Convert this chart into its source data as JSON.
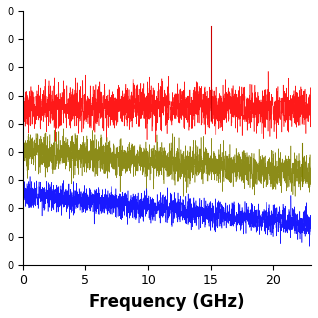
{
  "title": "",
  "xlabel": "Frequency (GHz)",
  "ylabel": "",
  "xlim": [
    0,
    23
  ],
  "ylim": [
    -90,
    10
  ],
  "xticks": [
    0,
    5,
    10,
    15,
    20
  ],
  "freq_max": 23,
  "red_baseline": -28,
  "olive_baseline": -45,
  "blue_baseline": -62,
  "red_noise_amp": 3.5,
  "olive_noise_amp": 3.0,
  "blue_noise_amp": 2.5,
  "red_spike_x": 15.0,
  "olive_spike_x": 22.3,
  "red_color": "#ff0000",
  "olive_color": "#808000",
  "blue_color": "#0000ff",
  "red_spike_color": "#cc0000",
  "olive_spike_color": "#808000",
  "background_color": "#ffffff",
  "xlabel_fontsize": 12,
  "xlabel_fontweight": "bold",
  "n_points": 2300,
  "red_slope": 0.0,
  "olive_slope": -9.0,
  "blue_slope": -12.0
}
